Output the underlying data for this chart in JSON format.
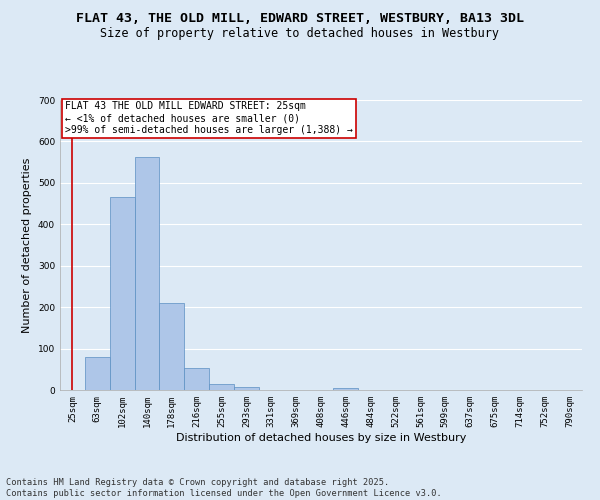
{
  "title_line1": "FLAT 43, THE OLD MILL, EDWARD STREET, WESTBURY, BA13 3DL",
  "title_line2": "Size of property relative to detached houses in Westbury",
  "xlabel": "Distribution of detached houses by size in Westbury",
  "ylabel": "Number of detached properties",
  "categories": [
    "25sqm",
    "63sqm",
    "102sqm",
    "140sqm",
    "178sqm",
    "216sqm",
    "255sqm",
    "293sqm",
    "331sqm",
    "369sqm",
    "408sqm",
    "446sqm",
    "484sqm",
    "522sqm",
    "561sqm",
    "599sqm",
    "637sqm",
    "675sqm",
    "714sqm",
    "752sqm",
    "790sqm"
  ],
  "values": [
    0,
    80,
    467,
    563,
    210,
    53,
    14,
    8,
    1,
    0,
    0,
    5,
    0,
    0,
    0,
    0,
    0,
    0,
    0,
    0,
    0
  ],
  "bar_color": "#aec6e8",
  "bar_edge_color": "#5a8fc2",
  "highlight_index": 0,
  "highlight_color": "#cc0000",
  "ylim": [
    0,
    700
  ],
  "yticks": [
    0,
    100,
    200,
    300,
    400,
    500,
    600,
    700
  ],
  "background_color": "#dce9f5",
  "grid_color": "#ffffff",
  "annotation_text": "FLAT 43 THE OLD MILL EDWARD STREET: 25sqm\n← <1% of detached houses are smaller (0)\n>99% of semi-detached houses are larger (1,388) →",
  "annotation_box_color": "#ffffff",
  "annotation_box_edge": "#cc0000",
  "footer_line1": "Contains HM Land Registry data © Crown copyright and database right 2025.",
  "footer_line2": "Contains public sector information licensed under the Open Government Licence v3.0.",
  "title_fontsize": 9.5,
  "subtitle_fontsize": 8.5,
  "axis_label_fontsize": 8,
  "tick_fontsize": 6.5,
  "annotation_fontsize": 7,
  "footer_fontsize": 6.2
}
